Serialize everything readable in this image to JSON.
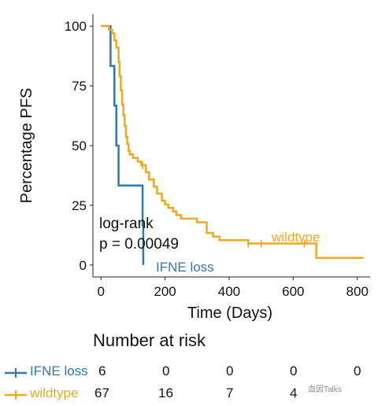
{
  "chart_data": {
    "type": "step",
    "ylabel": "Percentage PFS",
    "xlabel": "Time (Days)",
    "xlim": [
      -25,
      840
    ],
    "ylim": [
      -5,
      105
    ],
    "xticks": [
      "0",
      "200",
      "400",
      "600",
      "800"
    ],
    "yticks": [
      "0",
      "25",
      "50",
      "75",
      "100"
    ],
    "annotation": [
      "log-rank",
      "p = 0.00049"
    ],
    "series": [
      {
        "name": "IFNE loss",
        "color": "#2e78b5",
        "x": [
          0,
          15,
          30,
          42,
          48,
          55,
          130,
          132
        ],
        "y": [
          100,
          100,
          83.3,
          66.7,
          50,
          33.3,
          16.7,
          0
        ],
        "censor_x": []
      },
      {
        "name": "wildtype",
        "color": "#f0a821",
        "x": [
          0,
          25,
          35,
          42,
          48,
          55,
          58,
          62,
          66,
          70,
          74,
          78,
          82,
          86,
          90,
          100,
          115,
          125,
          140,
          150,
          165,
          175,
          190,
          200,
          210,
          225,
          235,
          250,
          300,
          330,
          350,
          370,
          400,
          440,
          460,
          500,
          640,
          672,
          820
        ],
        "y": [
          100,
          98.5,
          97,
          94,
          91,
          85,
          79.1,
          73.1,
          67.2,
          62.7,
          58.2,
          53.7,
          50.7,
          47.8,
          46.3,
          44.8,
          43.3,
          41.8,
          38.8,
          35.8,
          32.8,
          29.9,
          26.9,
          25.4,
          23.9,
          22.4,
          20.9,
          19.4,
          17.9,
          13.4,
          11.9,
          10.4,
          10.4,
          10.4,
          9.0,
          9.0,
          9.0,
          3.0,
          3.0
        ],
        "censor_x": [
          130,
          460,
          500,
          635
        ]
      }
    ],
    "series_labels": [
      "IFNE loss",
      "wildtype"
    ]
  },
  "risk_table": {
    "title": "Number at risk",
    "rows": [
      {
        "name": "IFNE loss",
        "color": "#2e78b5",
        "values": [
          "6",
          "0",
          "0",
          "0",
          "0"
        ]
      },
      {
        "name": "wildtype",
        "color": "#f0a821",
        "values": [
          "67",
          "16",
          "7",
          "4",
          ""
        ]
      }
    ]
  },
  "watermark": "血因Talks"
}
